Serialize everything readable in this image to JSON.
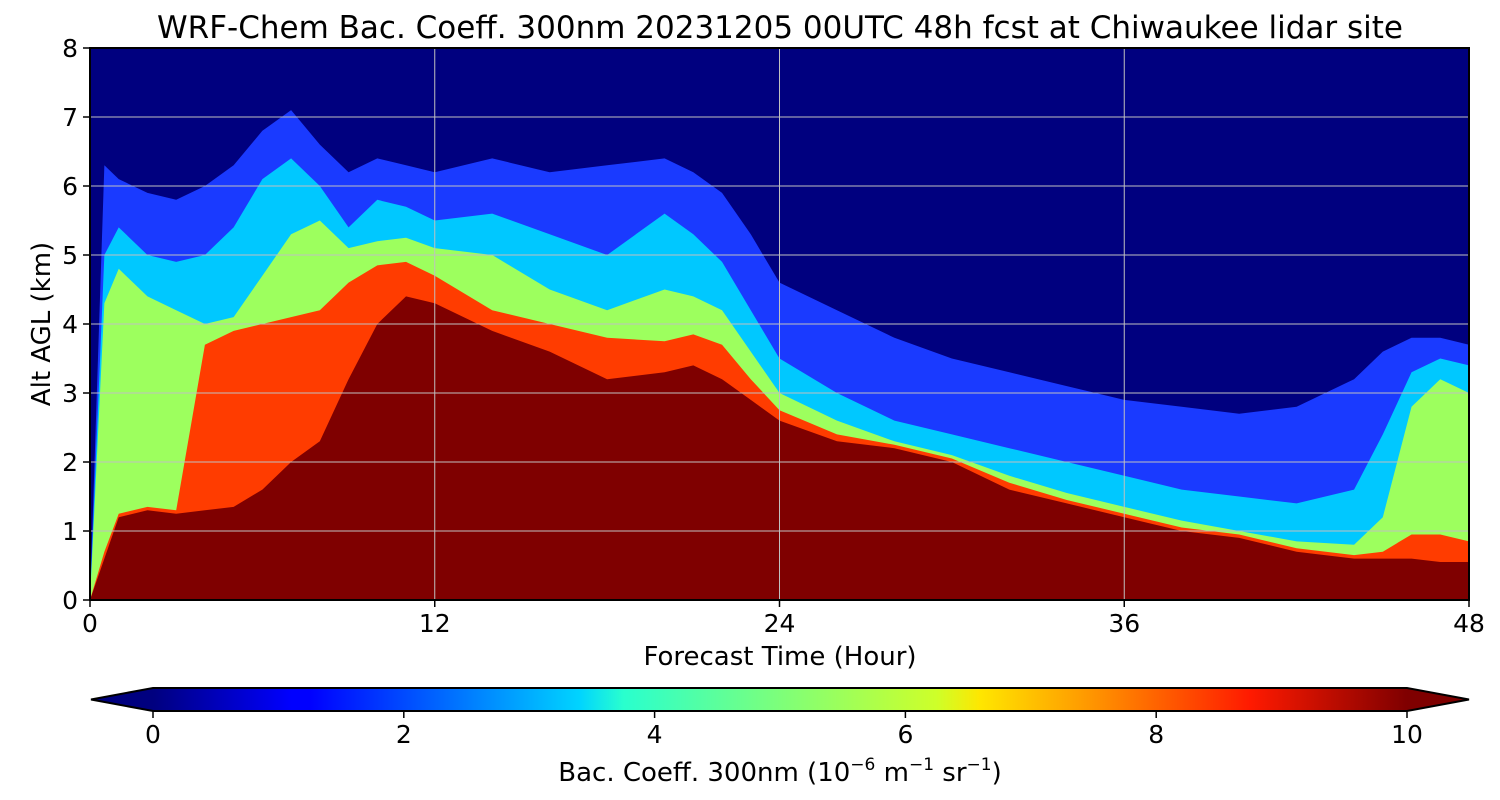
{
  "chart_data": {
    "type": "heatmap",
    "title": "WRF-Chem Bac. Coeff. 300nm  20231205 00UTC 48h fcst at Chiwaukee lidar site",
    "xlabel": "Forecast Time (Hour)",
    "ylabel": "Alt AGL (km)",
    "xlim": [
      0,
      48
    ],
    "ylim": [
      0,
      8
    ],
    "x_ticks": [
      "0",
      "12",
      "24",
      "36",
      "48"
    ],
    "y_ticks": [
      "0",
      "1",
      "2",
      "3",
      "4",
      "5",
      "6",
      "7",
      "8"
    ],
    "grid": true,
    "colorbar": {
      "label_main": "Bac. Coeff. 300nm  (10",
      "label_exp1": "−6",
      "label_mid": " m",
      "label_exp2": "−1",
      "label_mid2": " sr",
      "label_exp3": "−1",
      "label_end": ")",
      "range": [
        0,
        10
      ],
      "ticks": [
        "0",
        "2",
        "4",
        "6",
        "8",
        "10"
      ],
      "colormap": "jet",
      "extend": "both",
      "orientation": "horizontal"
    },
    "x_hours": [
      0,
      0.5,
      1,
      2,
      3,
      4,
      5,
      6,
      7,
      8,
      9,
      10,
      11,
      12,
      14,
      16,
      18,
      20,
      21,
      22,
      23,
      24,
      26,
      28,
      30,
      32,
      34,
      36,
      38,
      40,
      42,
      44,
      45,
      46,
      47,
      48
    ],
    "layer_tops_km": {
      "saturated_top": [
        0,
        0.6,
        1.2,
        1.3,
        1.25,
        1.3,
        1.35,
        1.6,
        2.0,
        2.3,
        3.2,
        4.0,
        4.4,
        4.3,
        3.9,
        3.6,
        3.2,
        3.3,
        3.4,
        3.2,
        2.9,
        2.6,
        2.3,
        2.2,
        2.0,
        1.6,
        1.4,
        1.2,
        1.0,
        0.9,
        0.7,
        0.6,
        0.6,
        0.6,
        0.55,
        0.55
      ],
      "red_top": [
        0,
        0.7,
        1.25,
        1.35,
        1.3,
        3.7,
        3.9,
        4.0,
        4.1,
        4.2,
        4.6,
        4.85,
        4.9,
        4.7,
        4.2,
        4.0,
        3.8,
        3.75,
        3.85,
        3.7,
        3.2,
        2.75,
        2.4,
        2.25,
        2.05,
        1.7,
        1.45,
        1.25,
        1.05,
        0.95,
        0.75,
        0.65,
        0.7,
        0.95,
        0.95,
        0.85
      ],
      "green_top": [
        0,
        4.3,
        4.8,
        4.4,
        4.2,
        4.0,
        4.1,
        4.7,
        5.3,
        5.5,
        5.1,
        5.2,
        5.25,
        5.1,
        5.0,
        4.5,
        4.2,
        4.5,
        4.4,
        4.2,
        3.6,
        3.0,
        2.6,
        2.3,
        2.1,
        1.8,
        1.55,
        1.35,
        1.15,
        1.0,
        0.85,
        0.8,
        1.2,
        2.8,
        3.2,
        3.0
      ],
      "cyan_top": [
        0,
        5.0,
        5.4,
        5.0,
        4.9,
        5.0,
        5.4,
        6.1,
        6.4,
        6.0,
        5.4,
        5.8,
        5.7,
        5.5,
        5.6,
        5.3,
        5.0,
        5.6,
        5.3,
        4.9,
        4.2,
        3.5,
        3.0,
        2.6,
        2.4,
        2.2,
        2.0,
        1.8,
        1.6,
        1.5,
        1.4,
        1.6,
        2.4,
        3.3,
        3.5,
        3.4
      ],
      "blue_top": [
        0,
        6.3,
        6.1,
        5.9,
        5.8,
        6.0,
        6.3,
        6.8,
        7.1,
        6.6,
        6.2,
        6.4,
        6.3,
        6.2,
        6.4,
        6.2,
        6.3,
        6.4,
        6.2,
        5.9,
        5.3,
        4.6,
        4.2,
        3.8,
        3.5,
        3.3,
        3.1,
        2.9,
        2.8,
        2.7,
        2.8,
        3.2,
        3.6,
        3.8,
        3.8,
        3.7
      ]
    }
  },
  "colors": {
    "frame": "#000000",
    "grid": "#c0c0c0",
    "background_field": "#00007f"
  }
}
